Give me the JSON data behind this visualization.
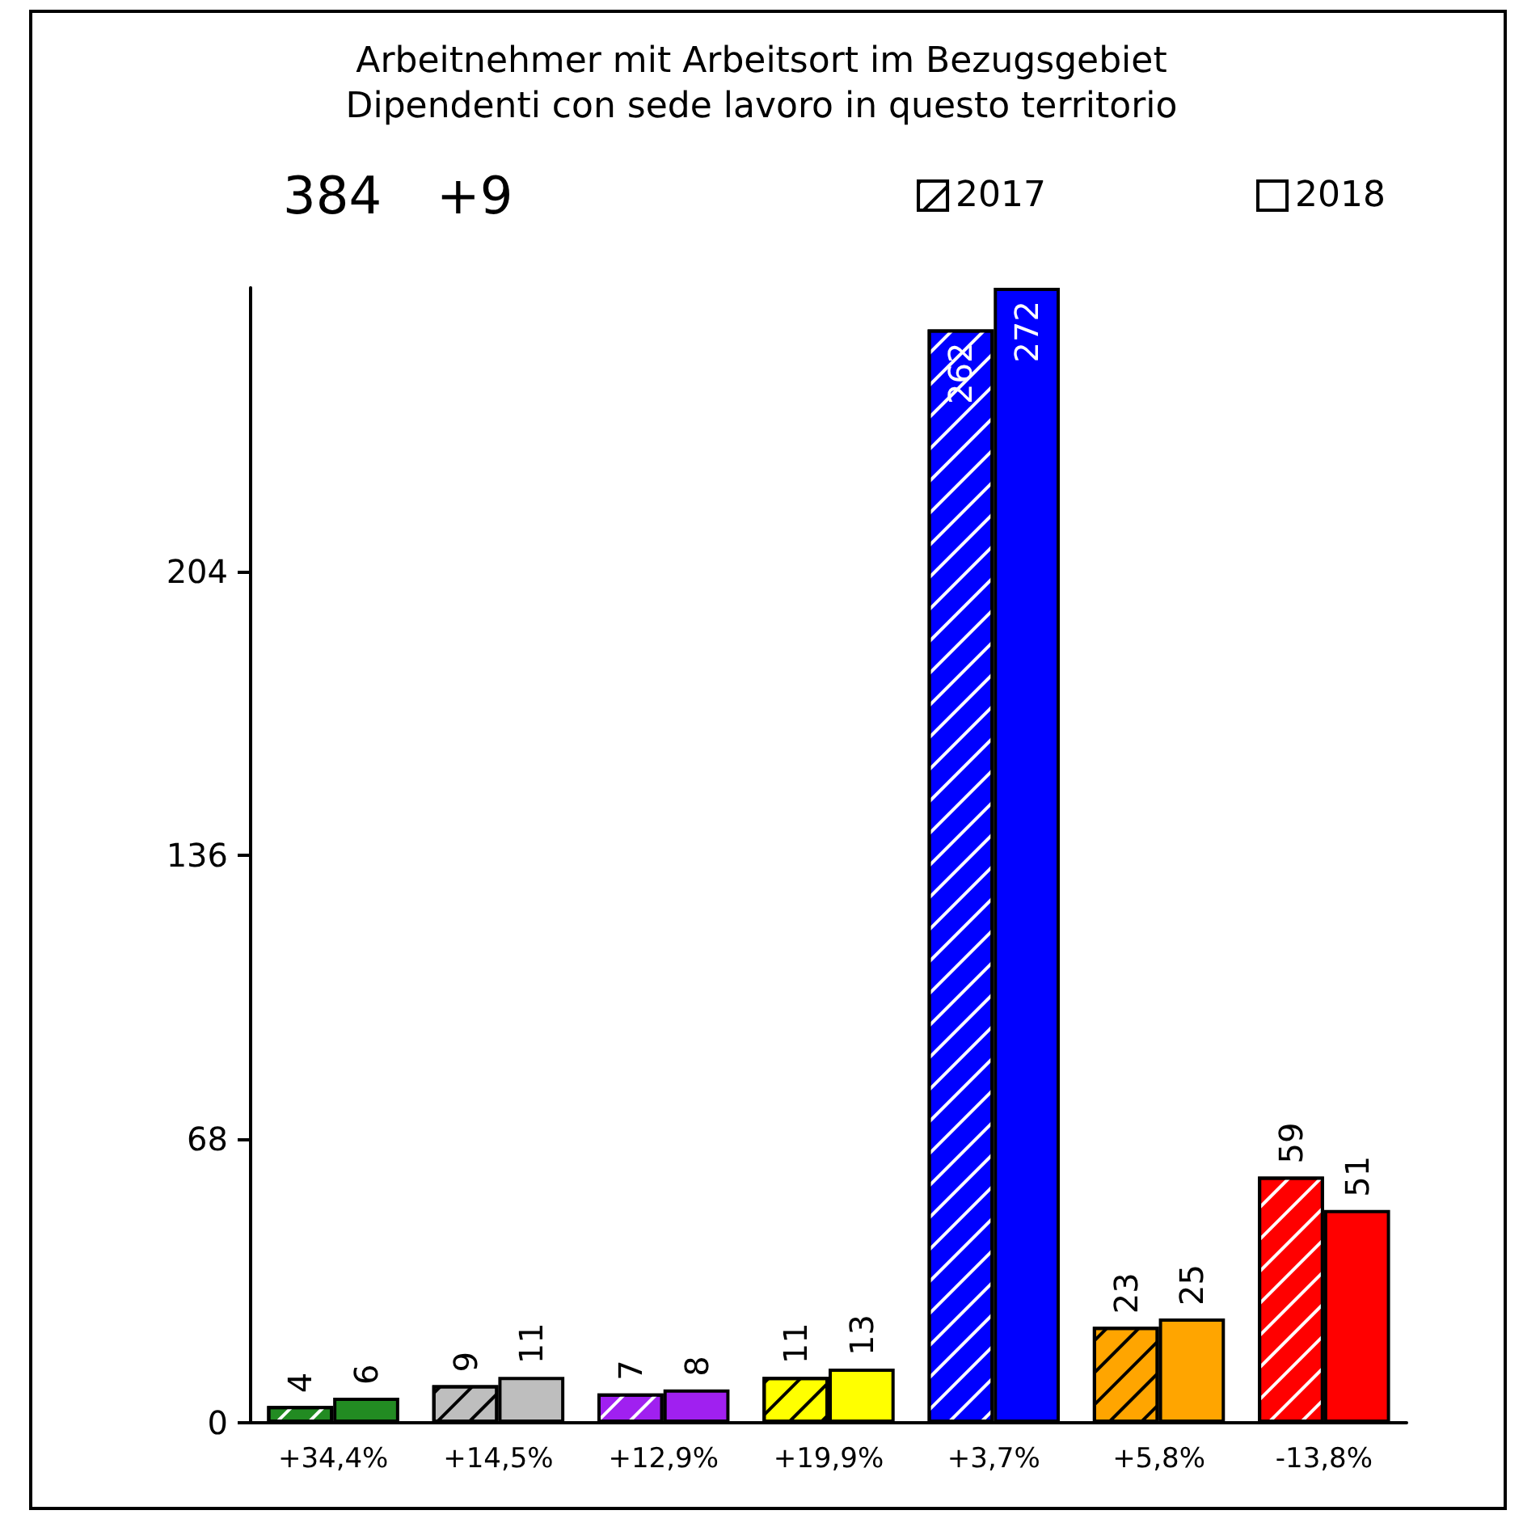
{
  "chart_data": {
    "type": "bar",
    "title": "Arbeitnehmer mit Arbeitsort im Bezugsgebiet",
    "subtitle": "Dipendenti con sede lavoro in questo territorio",
    "annotations": [
      "384",
      "+9"
    ],
    "categories": [
      "+34,4%",
      "+14,5%",
      "+12,9%",
      "+19,9%",
      "+3,7%",
      "+5,8%",
      "-13,8%"
    ],
    "series": [
      {
        "name": "2017",
        "values": [
          4,
          9,
          7,
          11,
          262,
          23,
          59
        ],
        "colors": [
          "#228b22",
          "#bebebe",
          "#a020f0",
          "#ffff00",
          "#0000ff",
          "#ffa500",
          "#ff0000"
        ]
      },
      {
        "name": "2018",
        "values": [
          6,
          11,
          8,
          13,
          272,
          25,
          51
        ],
        "colors": [
          "#228b22",
          "#bebebe",
          "#a020f0",
          "#ffff00",
          "#0000ff",
          "#ffa500",
          "#ff0000"
        ]
      }
    ],
    "ylim": [
      0,
      272
    ],
    "yticks": [
      0,
      68,
      136,
      204
    ],
    "grid": false,
    "legend": "top right",
    "data_labels": true
  }
}
